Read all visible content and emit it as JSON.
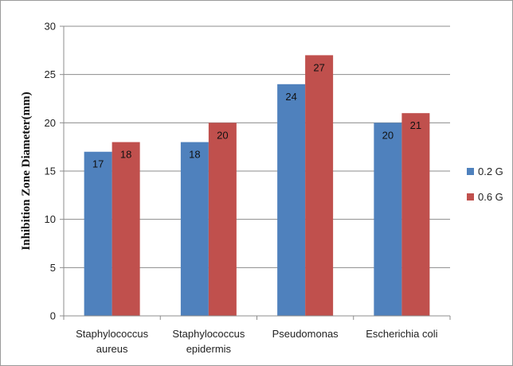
{
  "chart_data": {
    "type": "bar",
    "categories": [
      [
        "Staphylococcus",
        "aureus"
      ],
      [
        "Staphylococcus",
        "epidermis"
      ],
      [
        "Pseudomonas"
      ],
      [
        "Escherichia coli"
      ]
    ],
    "series": [
      {
        "name": "0.2 G",
        "values": [
          17,
          18,
          24,
          20
        ],
        "color": "#4f81bd"
      },
      {
        "name": "0.6 G",
        "values": [
          18,
          20,
          27,
          21
        ],
        "color": "#c0504d"
      }
    ],
    "title": "",
    "xlabel": "",
    "ylabel": "Inhibition Zone Diameter(mm)",
    "ylim": [
      0,
      30
    ],
    "yticks": [
      0,
      5,
      10,
      15,
      20,
      25,
      30
    ],
    "grid": true,
    "legend": "right",
    "data_labels": true
  }
}
